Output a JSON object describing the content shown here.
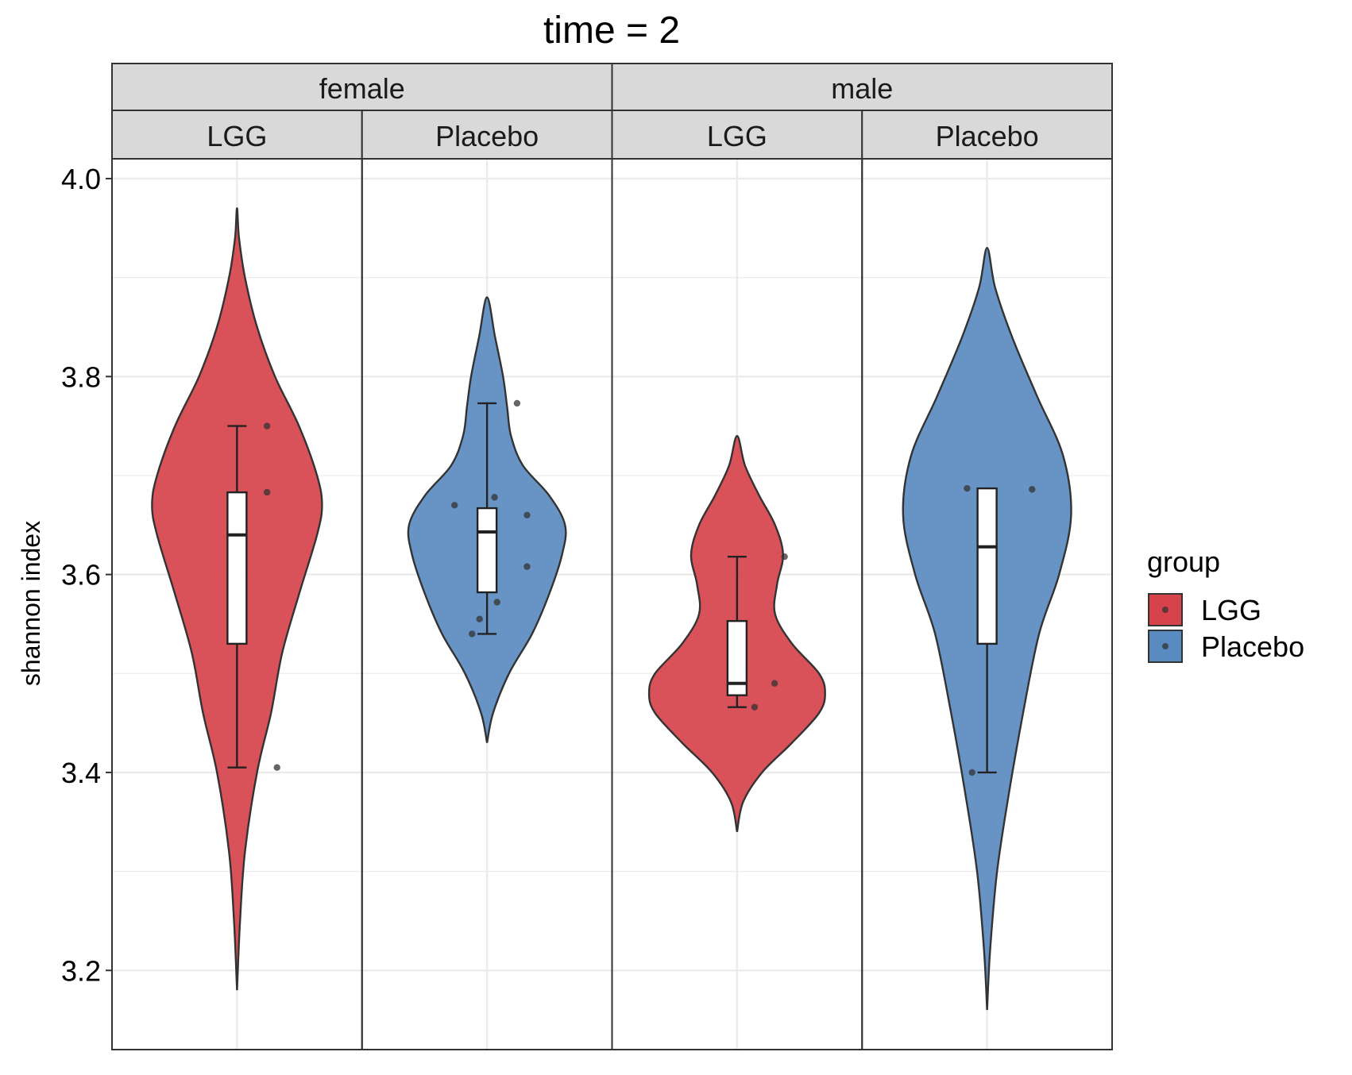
{
  "chart_data": {
    "type": "violin",
    "title": "time = 2",
    "ylabel": "shannon index",
    "xlabel": "",
    "ylim": [
      3.12,
      4.02
    ],
    "yticks": [
      "3.2",
      "3.4",
      "3.6",
      "3.8",
      "4.0"
    ],
    "grid": true,
    "legend": {
      "title": "group",
      "position": "right",
      "entries": [
        {
          "label": "LGG",
          "color": "#d7434b"
        },
        {
          "label": "Placebo",
          "color": "#5a8bc0"
        }
      ]
    },
    "facets": [
      {
        "sex": "female",
        "panels": [
          {
            "group": "LGG",
            "color": "#d7434b",
            "violin_min": 3.18,
            "violin_max": 3.97,
            "density": [
              [
                3.18,
                0.0
              ],
              [
                3.25,
                0.03
              ],
              [
                3.32,
                0.08
              ],
              [
                3.4,
                0.2
              ],
              [
                3.46,
                0.34
              ],
              [
                3.52,
                0.45
              ],
              [
                3.58,
                0.62
              ],
              [
                3.64,
                0.8
              ],
              [
                3.67,
                0.85
              ],
              [
                3.7,
                0.8
              ],
              [
                3.75,
                0.62
              ],
              [
                3.8,
                0.38
              ],
              [
                3.85,
                0.2
              ],
              [
                3.9,
                0.08
              ],
              [
                3.94,
                0.02
              ],
              [
                3.97,
                0.0
              ]
            ],
            "box": {
              "whisker_low": 3.405,
              "q1": 3.53,
              "median": 3.64,
              "q3": 3.683,
              "whisker_high": 3.75
            },
            "points": [
              [
                0.12,
                3.75
              ],
              [
                0.12,
                3.683
              ],
              [
                0.16,
                3.405
              ]
            ]
          },
          {
            "group": "Placebo",
            "color": "#5a8bc0",
            "violin_min": 3.43,
            "violin_max": 3.88,
            "density": [
              [
                3.43,
                0.0
              ],
              [
                3.46,
                0.06
              ],
              [
                3.5,
                0.22
              ],
              [
                3.54,
                0.45
              ],
              [
                3.58,
                0.62
              ],
              [
                3.62,
                0.75
              ],
              [
                3.65,
                0.78
              ],
              [
                3.68,
                0.62
              ],
              [
                3.71,
                0.36
              ],
              [
                3.74,
                0.24
              ],
              [
                3.77,
                0.2
              ],
              [
                3.8,
                0.16
              ],
              [
                3.84,
                0.08
              ],
              [
                3.88,
                0.0
              ]
            ],
            "box": {
              "whisker_low": 3.54,
              "q1": 3.582,
              "median": 3.643,
              "q3": 3.667,
              "whisker_high": 3.773
            },
            "points": [
              [
                0.12,
                3.773
              ],
              [
                -0.13,
                3.67
              ],
              [
                0.03,
                3.678
              ],
              [
                0.16,
                3.66
              ],
              [
                0.16,
                3.608
              ],
              [
                0.04,
                3.572
              ],
              [
                -0.03,
                3.555
              ],
              [
                -0.06,
                3.54
              ]
            ]
          }
        ]
      },
      {
        "sex": "male",
        "panels": [
          {
            "group": "LGG",
            "color": "#d7434b",
            "violin_min": 3.34,
            "violin_max": 3.74,
            "density": [
              [
                3.34,
                0.0
              ],
              [
                3.37,
                0.06
              ],
              [
                3.4,
                0.25
              ],
              [
                3.43,
                0.55
              ],
              [
                3.46,
                0.82
              ],
              [
                3.48,
                0.88
              ],
              [
                3.5,
                0.82
              ],
              [
                3.53,
                0.55
              ],
              [
                3.56,
                0.38
              ],
              [
                3.59,
                0.4
              ],
              [
                3.62,
                0.46
              ],
              [
                3.65,
                0.38
              ],
              [
                3.68,
                0.22
              ],
              [
                3.71,
                0.08
              ],
              [
                3.74,
                0.0
              ]
            ],
            "box": {
              "whisker_low": 3.466,
              "q1": 3.478,
              "median": 3.49,
              "q3": 3.553,
              "whisker_high": 3.618
            },
            "points": [
              [
                0.19,
                3.618
              ],
              [
                0.15,
                3.49
              ],
              [
                0.07,
                3.466
              ]
            ]
          },
          {
            "group": "Placebo",
            "color": "#5a8bc0",
            "violin_min": 3.16,
            "violin_max": 3.93,
            "density": [
              [
                3.16,
                0.0
              ],
              [
                3.22,
                0.03
              ],
              [
                3.3,
                0.1
              ],
              [
                3.38,
                0.22
              ],
              [
                3.46,
                0.36
              ],
              [
                3.54,
                0.52
              ],
              [
                3.6,
                0.72
              ],
              [
                3.66,
                0.84
              ],
              [
                3.72,
                0.76
              ],
              [
                3.78,
                0.5
              ],
              [
                3.84,
                0.25
              ],
              [
                3.89,
                0.08
              ],
              [
                3.93,
                0.0
              ]
            ],
            "box": {
              "whisker_low": 3.4,
              "q1": 3.53,
              "median": 3.628,
              "q3": 3.687,
              "whisker_high": 3.687
            },
            "points": [
              [
                -0.08,
                3.687
              ],
              [
                0.18,
                3.686
              ],
              [
                -0.06,
                3.4
              ]
            ]
          }
        ]
      }
    ]
  }
}
